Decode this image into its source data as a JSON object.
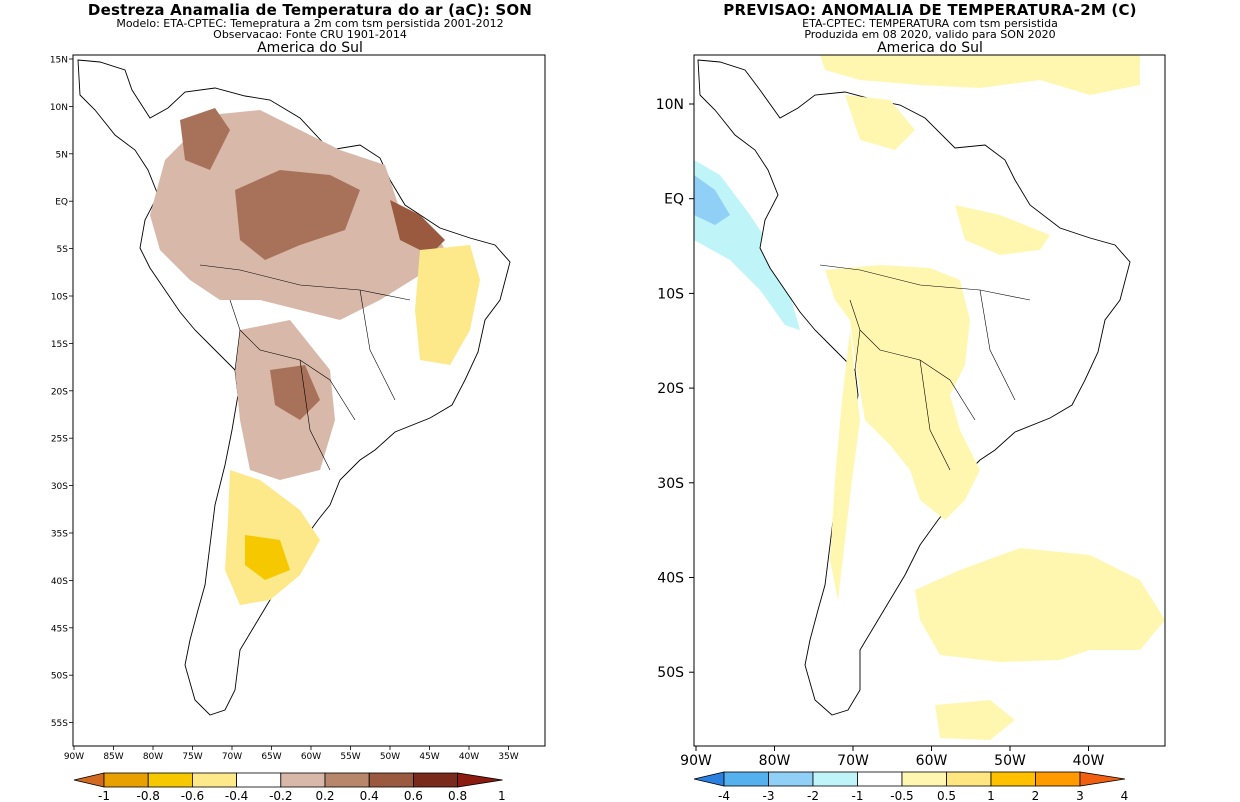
{
  "left": {
    "title": "Destreza Anamalia de Temperatura do ar (aC): SON",
    "subtitle1": "Modelo: ETA-CPTEC: Temepratura a 2m com tsm persistida 2001-2012",
    "subtitle2": "Observacao: Fonte CRU 1901-2014",
    "region": "America do Sul",
    "lat_labels": [
      "15N",
      "10N",
      "5N",
      "EQ",
      "5S",
      "10S",
      "15S",
      "20S",
      "25S",
      "30S",
      "35S",
      "40S",
      "45S",
      "50S",
      "55S"
    ],
    "lon_labels": [
      "90W",
      "85W",
      "80W",
      "75W",
      "70W",
      "65W",
      "60W",
      "55W",
      "50W",
      "45W",
      "40W",
      "35W"
    ],
    "colorbar": {
      "labels": [
        "-1",
        "-0.8",
        "-0.6",
        "-0.4",
        "-0.2",
        "0.2",
        "0.4",
        "0.6",
        "0.8",
        "1"
      ],
      "colors": [
        "#d2691e",
        "#e8a000",
        "#f5c800",
        "#fde98a",
        "#ffffff",
        "#d8b8a8",
        "#b8866a",
        "#9a5a40",
        "#7a2a1a",
        "#8b1a10"
      ]
    }
  },
  "right": {
    "title": "PREVISAO: ANOMALIA DE TEMPERATURA-2M (C)",
    "subtitle1": "ETA-CPTEC: TEMPERATURA com tsm persistida",
    "subtitle2": "Produzida em 08 2020, valido para SON 2020",
    "region": "America do Sul",
    "lat_labels": [
      "10N",
      "EQ",
      "10S",
      "20S",
      "30S",
      "40S",
      "50S"
    ],
    "lon_labels": [
      "90W",
      "80W",
      "70W",
      "60W",
      "50W",
      "40W"
    ],
    "colorbar": {
      "labels": [
        "-4",
        "-3",
        "-2",
        "-1",
        "-0.5",
        "0.5",
        "1",
        "2",
        "3",
        "4"
      ],
      "colors": [
        "#2a80e0",
        "#55b0ee",
        "#90cff6",
        "#bff4f8",
        "#ffffff",
        "#fff7b0",
        "#ffe680",
        "#ffc000",
        "#ff9a00",
        "#f06010"
      ]
    }
  }
}
